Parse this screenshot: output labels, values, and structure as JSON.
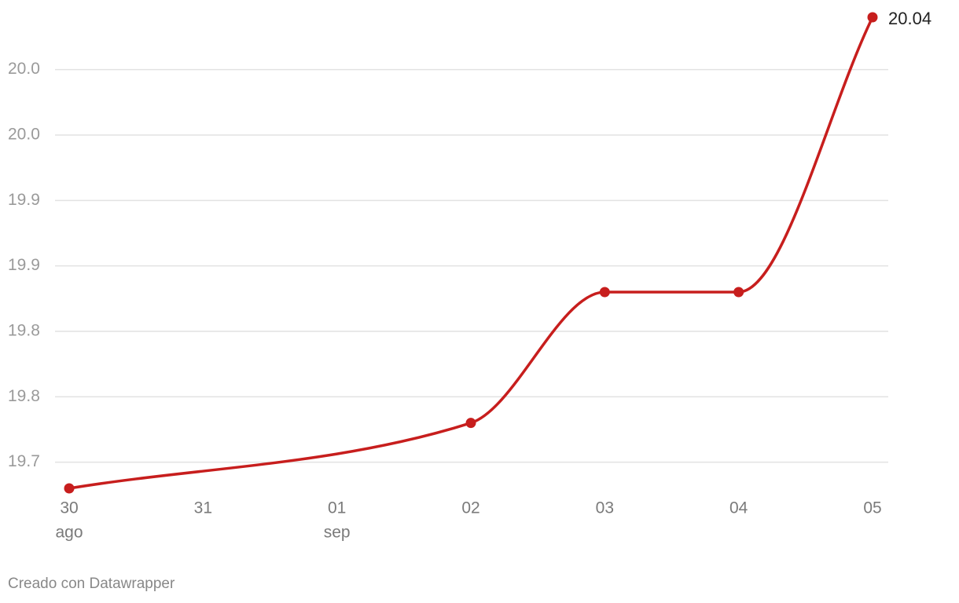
{
  "chart_data": {
    "type": "line",
    "categories": [
      "30",
      "31",
      "01",
      "02",
      "03",
      "04",
      "05"
    ],
    "category_sublabels": [
      "ago",
      null,
      "sep",
      null,
      null,
      null,
      null
    ],
    "series": [
      {
        "color": "#c71e1d",
        "x": [
          "30",
          "02",
          "03",
          "04",
          "05"
        ],
        "values": [
          19.68,
          19.73,
          19.83,
          19.83,
          20.04
        ]
      }
    ],
    "label_last": true,
    "ylim": [
      19.68,
      20.04
    ],
    "yticks": [
      19.7,
      {
        "value": 19.75,
        "label": "19.8"
      },
      19.8,
      {
        "value": 19.85,
        "label": "19.9"
      },
      19.9,
      {
        "value": 19.95,
        "label": "20.0"
      },
      {
        "value": 20.0,
        "label": "20.0"
      }
    ],
    "grid": true,
    "curve": "monotone",
    "footer": "Creado con Datawrapper"
  }
}
